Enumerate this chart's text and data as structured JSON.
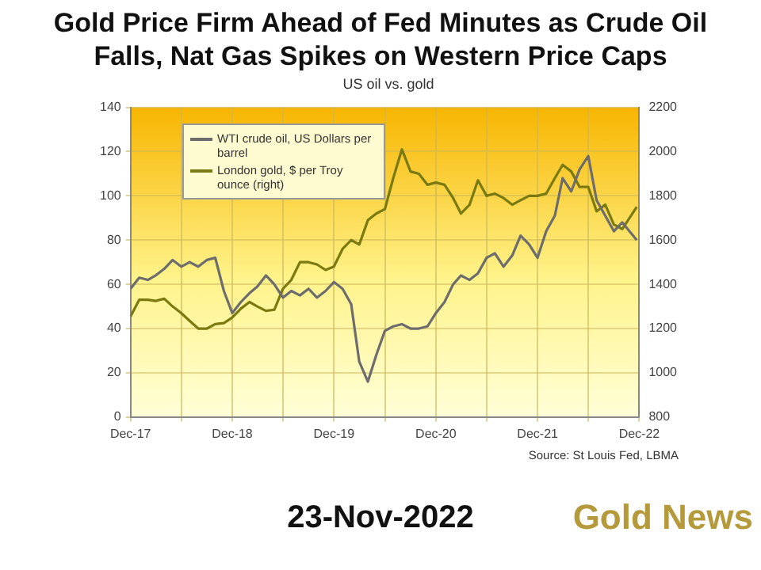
{
  "chart_data": {
    "type": "line",
    "title": "Gold Price Firm Ahead of Fed Minutes as Crude Oil Falls, Nat Gas Spikes on Western Price Caps",
    "subtitle": "US oil vs. gold",
    "annotations": [
      "Source: St Louis Fed, LBMA",
      "23-Nov-2022",
      "Gold News"
    ],
    "legend": "top left",
    "grid": true,
    "marker": "none",
    "line_style": "solid",
    "xlim": [
      "2017-12",
      "2022-12"
    ],
    "xticks": [
      {
        "value": "2017-12",
        "label": "Dec-17"
      },
      {
        "value": "2018-06",
        "label": null
      },
      {
        "value": "2018-12",
        "label": "Dec-18"
      },
      {
        "value": "2019-06",
        "label": null
      },
      {
        "value": "2019-12",
        "label": "Dec-19"
      },
      {
        "value": "2020-06",
        "label": null
      },
      {
        "value": "2020-12",
        "label": "Dec-20"
      },
      {
        "value": "2021-06",
        "label": null
      },
      {
        "value": "2021-12",
        "label": "Dec-21"
      },
      {
        "value": "2022-06",
        "label": null
      },
      {
        "value": "2022-12",
        "label": "Dec-22"
      }
    ],
    "ylim": [
      0,
      140
    ],
    "yticks": [
      0,
      20,
      40,
      60,
      80,
      100,
      120,
      140
    ],
    "y2lim": [
      800,
      2200
    ],
    "y2ticks": [
      800,
      1000,
      1200,
      1400,
      1600,
      1800,
      2000,
      2200
    ],
    "x": [
      "2017-12",
      "2018-01",
      "2018-02",
      "2018-03",
      "2018-04",
      "2018-05",
      "2018-06",
      "2018-07",
      "2018-08",
      "2018-09",
      "2018-10",
      "2018-11",
      "2018-12",
      "2019-01",
      "2019-02",
      "2019-03",
      "2019-04",
      "2019-05",
      "2019-06",
      "2019-07",
      "2019-08",
      "2019-09",
      "2019-10",
      "2019-11",
      "2019-12",
      "2020-01",
      "2020-02",
      "2020-03",
      "2020-04",
      "2020-05",
      "2020-06",
      "2020-07",
      "2020-08",
      "2020-09",
      "2020-10",
      "2020-11",
      "2020-12",
      "2021-01",
      "2021-02",
      "2021-03",
      "2021-04",
      "2021-05",
      "2021-06",
      "2021-07",
      "2021-08",
      "2021-09",
      "2021-10",
      "2021-11",
      "2021-12",
      "2022-01",
      "2022-02",
      "2022-03",
      "2022-04",
      "2022-05",
      "2022-06",
      "2022-07",
      "2022-08",
      "2022-09",
      "2022-10",
      "2022-11-22"
    ],
    "series": [
      {
        "name": "WTI crude oil, US Dollars per barrel",
        "color": "#6d6d6d",
        "values": [
          58,
          63,
          62,
          64,
          67,
          71,
          68,
          70,
          68,
          71,
          72,
          57,
          47,
          52,
          56,
          59,
          64,
          60,
          54,
          57,
          55,
          58,
          54,
          57,
          61,
          58,
          51,
          25,
          16,
          28,
          39,
          41,
          42,
          40,
          40,
          41,
          47,
          52,
          60,
          64,
          62,
          65,
          72,
          74,
          68,
          73,
          82,
          78,
          72,
          84,
          91,
          108,
          102,
          112,
          118,
          98,
          91,
          84,
          88,
          80
        ]
      },
      {
        "name": "London gold, $ per Troy ounce (right)",
        "color": "#7a7a10",
        "axis": "y2",
        "values": [
          1255,
          1330,
          1330,
          1325,
          1335,
          1300,
          1270,
          1235,
          1200,
          1200,
          1220,
          1225,
          1250,
          1290,
          1320,
          1300,
          1280,
          1285,
          1380,
          1420,
          1500,
          1500,
          1490,
          1465,
          1480,
          1560,
          1600,
          1580,
          1690,
          1720,
          1740,
          1880,
          2010,
          1910,
          1900,
          1850,
          1860,
          1850,
          1790,
          1720,
          1760,
          1870,
          1800,
          1810,
          1790,
          1760,
          1780,
          1800,
          1800,
          1810,
          1880,
          1940,
          1910,
          1840,
          1840,
          1730,
          1760,
          1670,
          1650,
          1750
        ]
      }
    ]
  }
}
